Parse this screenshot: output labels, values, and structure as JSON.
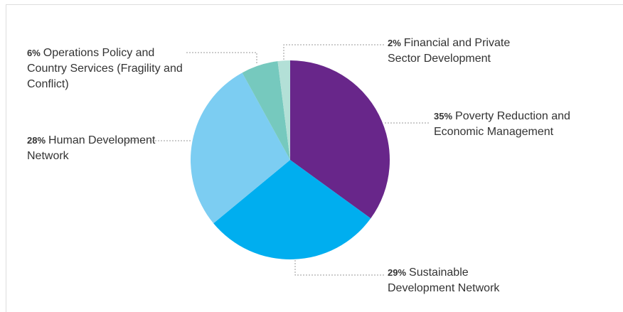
{
  "chart_data": {
    "type": "pie",
    "categories": [
      "Poverty Reduction and Economic Management",
      "Sustainable Development Network",
      "Human Development Network",
      "Operations Policy and Country Services (Fragility and Conflict)",
      "Financial and Private Sector Development"
    ],
    "values": [
      35,
      29,
      28,
      6,
      2
    ],
    "value_labels": [
      "35%",
      "29%",
      "28%",
      "6%",
      "2%"
    ],
    "colors": [
      "#68268a",
      "#00aeef",
      "#7ccdf2",
      "#76c9be",
      "#b3e0d7"
    ]
  }
}
